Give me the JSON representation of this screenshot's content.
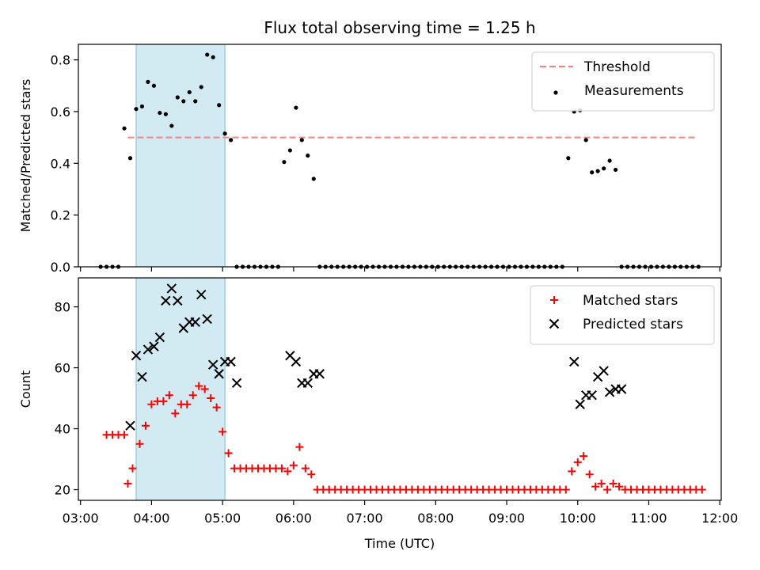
{
  "chart_data": [
    {
      "type": "scatter",
      "title": "Flux total observing time = 1.25 h",
      "xlabel": "",
      "ylabel": "Matched/Predicted stars",
      "ylim": [
        0,
        0.86
      ],
      "yticks": [
        "0.0",
        "0.2",
        "0.4",
        "0.6",
        "0.8"
      ],
      "x_unit": "hours UTC",
      "xlim": [
        2.97,
        12.02
      ],
      "shaded_interval": [
        "03:47",
        "05:02"
      ],
      "shaded_color": "#add8e6",
      "legend_position": "top-right",
      "threshold": {
        "name": "Threshold",
        "value": 0.5,
        "x_range": [
          "03:40",
          "11:40"
        ],
        "color": "#ff7f7f",
        "style": "dashed"
      },
      "series": [
        {
          "name": "Measurements",
          "marker": "dot",
          "color": "#000000",
          "points": [
            [
              "03:17",
              0
            ],
            [
              "03:22",
              0
            ],
            [
              "03:27",
              0
            ],
            [
              "03:32",
              0
            ],
            [
              "03:37",
              0.535
            ],
            [
              "03:42",
              0.42
            ],
            [
              "03:47",
              0.61
            ],
            [
              "03:52",
              0.62
            ],
            [
              "03:57",
              0.715
            ],
            [
              "04:02",
              0.7
            ],
            [
              "04:07",
              0.595
            ],
            [
              "04:12",
              0.59
            ],
            [
              "04:17",
              0.545
            ],
            [
              "04:22",
              0.655
            ],
            [
              "04:27",
              0.64
            ],
            [
              "04:32",
              0.675
            ],
            [
              "04:37",
              0.64
            ],
            [
              "04:42",
              0.695
            ],
            [
              "04:47",
              0.82
            ],
            [
              "04:52",
              0.81
            ],
            [
              "04:57",
              0.625
            ],
            [
              "05:02",
              0.515
            ],
            [
              "05:07",
              0.49
            ],
            [
              "05:12",
              0
            ],
            [
              "05:17",
              0
            ],
            [
              "05:22",
              0
            ],
            [
              "05:27",
              0
            ],
            [
              "05:32",
              0
            ],
            [
              "05:37",
              0
            ],
            [
              "05:42",
              0
            ],
            [
              "05:47",
              0
            ],
            [
              "05:52",
              0.405
            ],
            [
              "05:57",
              0.45
            ],
            [
              "06:02",
              0.615
            ],
            [
              "06:07",
              0.49
            ],
            [
              "06:12",
              0.43
            ],
            [
              "06:17",
              0.34
            ],
            [
              "06:22",
              0
            ],
            [
              "06:27",
              0
            ],
            [
              "06:32",
              0
            ],
            [
              "06:37",
              0
            ],
            [
              "06:42",
              0
            ],
            [
              "06:47",
              0
            ],
            [
              "06:52",
              0
            ],
            [
              "06:57",
              0
            ],
            [
              "07:02",
              0
            ],
            [
              "07:07",
              0
            ],
            [
              "07:12",
              0
            ],
            [
              "07:17",
              0
            ],
            [
              "07:22",
              0
            ],
            [
              "07:27",
              0
            ],
            [
              "07:32",
              0
            ],
            [
              "07:37",
              0
            ],
            [
              "07:42",
              0
            ],
            [
              "07:47",
              0
            ],
            [
              "07:52",
              0
            ],
            [
              "07:57",
              0
            ],
            [
              "08:02",
              0
            ],
            [
              "08:07",
              0
            ],
            [
              "08:12",
              0
            ],
            [
              "08:17",
              0
            ],
            [
              "08:22",
              0
            ],
            [
              "08:27",
              0
            ],
            [
              "08:32",
              0
            ],
            [
              "08:37",
              0
            ],
            [
              "08:42",
              0
            ],
            [
              "08:47",
              0
            ],
            [
              "08:52",
              0
            ],
            [
              "08:57",
              0
            ],
            [
              "09:02",
              0
            ],
            [
              "09:07",
              0
            ],
            [
              "09:12",
              0
            ],
            [
              "09:17",
              0
            ],
            [
              "09:22",
              0
            ],
            [
              "09:27",
              0
            ],
            [
              "09:32",
              0
            ],
            [
              "09:37",
              0
            ],
            [
              "09:42",
              0
            ],
            [
              "09:47",
              0
            ],
            [
              "09:52",
              0.42
            ],
            [
              "09:57",
              0.6
            ],
            [
              "10:02",
              0.605
            ],
            [
              "10:07",
              0.49
            ],
            [
              "10:12",
              0.365
            ],
            [
              "10:17",
              0.37
            ],
            [
              "10:22",
              0.38
            ],
            [
              "10:27",
              0.41
            ],
            [
              "10:32",
              0.375
            ],
            [
              "10:37",
              0
            ],
            [
              "10:42",
              0
            ],
            [
              "10:47",
              0
            ],
            [
              "10:52",
              0
            ],
            [
              "10:57",
              0
            ],
            [
              "11:02",
              0
            ],
            [
              "11:07",
              0
            ],
            [
              "11:12",
              0
            ],
            [
              "11:17",
              0
            ],
            [
              "11:22",
              0
            ],
            [
              "11:27",
              0
            ],
            [
              "11:32",
              0
            ],
            [
              "11:37",
              0
            ],
            [
              "11:42",
              0
            ]
          ]
        }
      ]
    },
    {
      "type": "scatter",
      "title": "",
      "xlabel": "Time (UTC)",
      "ylabel": "Count",
      "ylim": [
        16.5,
        89.5
      ],
      "yticks": [
        20,
        40,
        60,
        80
      ],
      "xlim": [
        2.97,
        12.02
      ],
      "xticks": [
        "03:00",
        "04:00",
        "05:00",
        "06:00",
        "07:00",
        "08:00",
        "09:00",
        "10:00",
        "11:00",
        "12:00"
      ],
      "shaded_interval": [
        "03:47",
        "05:02"
      ],
      "shaded_color": "#add8e6",
      "legend_position": "top-right",
      "series": [
        {
          "name": "Matched stars",
          "marker": "plus",
          "color": "#ff0000",
          "points": [
            [
              "03:22",
              38
            ],
            [
              "03:27",
              38
            ],
            [
              "03:32",
              38
            ],
            [
              "03:37",
              38
            ],
            [
              "03:40",
              22
            ],
            [
              "03:44",
              27
            ],
            [
              "03:50",
              35
            ],
            [
              "03:55",
              41
            ],
            [
              "04:00",
              48
            ],
            [
              "04:05",
              49
            ],
            [
              "04:10",
              49
            ],
            [
              "04:15",
              51
            ],
            [
              "04:20",
              45
            ],
            [
              "04:25",
              48
            ],
            [
              "04:30",
              48
            ],
            [
              "04:35",
              51
            ],
            [
              "04:40",
              54
            ],
            [
              "04:45",
              53
            ],
            [
              "04:50",
              50
            ],
            [
              "04:55",
              47
            ],
            [
              "05:00",
              39
            ],
            [
              "05:05",
              32
            ],
            [
              "05:10",
              27
            ],
            [
              "05:15",
              27
            ],
            [
              "05:20",
              27
            ],
            [
              "05:25",
              27
            ],
            [
              "05:30",
              27
            ],
            [
              "05:35",
              27
            ],
            [
              "05:40",
              27
            ],
            [
              "05:45",
              27
            ],
            [
              "05:50",
              27
            ],
            [
              "05:55",
              26
            ],
            [
              "06:00",
              28
            ],
            [
              "06:05",
              34
            ],
            [
              "06:10",
              27
            ],
            [
              "06:15",
              25
            ],
            [
              "06:20",
              20
            ],
            [
              "06:25",
              20
            ],
            [
              "06:30",
              20
            ],
            [
              "06:35",
              20
            ],
            [
              "06:40",
              20
            ],
            [
              "06:45",
              20
            ],
            [
              "06:50",
              20
            ],
            [
              "06:55",
              20
            ],
            [
              "07:00",
              20
            ],
            [
              "07:05",
              20
            ],
            [
              "07:10",
              20
            ],
            [
              "07:15",
              20
            ],
            [
              "07:20",
              20
            ],
            [
              "07:25",
              20
            ],
            [
              "07:30",
              20
            ],
            [
              "07:35",
              20
            ],
            [
              "07:40",
              20
            ],
            [
              "07:45",
              20
            ],
            [
              "07:50",
              20
            ],
            [
              "07:55",
              20
            ],
            [
              "08:00",
              20
            ],
            [
              "08:05",
              20
            ],
            [
              "08:10",
              20
            ],
            [
              "08:15",
              20
            ],
            [
              "08:20",
              20
            ],
            [
              "08:25",
              20
            ],
            [
              "08:30",
              20
            ],
            [
              "08:35",
              20
            ],
            [
              "08:40",
              20
            ],
            [
              "08:45",
              20
            ],
            [
              "08:50",
              20
            ],
            [
              "08:55",
              20
            ],
            [
              "09:00",
              20
            ],
            [
              "09:05",
              20
            ],
            [
              "09:10",
              20
            ],
            [
              "09:15",
              20
            ],
            [
              "09:20",
              20
            ],
            [
              "09:25",
              20
            ],
            [
              "09:30",
              20
            ],
            [
              "09:35",
              20
            ],
            [
              "09:40",
              20
            ],
            [
              "09:45",
              20
            ],
            [
              "09:50",
              20
            ],
            [
              "09:55",
              26
            ],
            [
              "10:00",
              29
            ],
            [
              "10:05",
              31
            ],
            [
              "10:10",
              25
            ],
            [
              "10:15",
              21
            ],
            [
              "10:20",
              22
            ],
            [
              "10:25",
              20
            ],
            [
              "10:30",
              22
            ],
            [
              "10:35",
              21
            ],
            [
              "10:40",
              20
            ],
            [
              "10:45",
              20
            ],
            [
              "10:50",
              20
            ],
            [
              "10:55",
              20
            ],
            [
              "11:00",
              20
            ],
            [
              "11:05",
              20
            ],
            [
              "11:10",
              20
            ],
            [
              "11:15",
              20
            ],
            [
              "11:20",
              20
            ],
            [
              "11:25",
              20
            ],
            [
              "11:30",
              20
            ],
            [
              "11:35",
              20
            ],
            [
              "11:40",
              20
            ],
            [
              "11:45",
              20
            ]
          ]
        },
        {
          "name": "Predicted stars",
          "marker": "x",
          "color": "#000000",
          "points": [
            [
              "03:42",
              41
            ],
            [
              "03:47",
              64
            ],
            [
              "03:52",
              57
            ],
            [
              "03:57",
              66
            ],
            [
              "04:02",
              67
            ],
            [
              "04:07",
              70
            ],
            [
              "04:12",
              82
            ],
            [
              "04:17",
              86
            ],
            [
              "04:22",
              82
            ],
            [
              "04:27",
              73
            ],
            [
              "04:32",
              75
            ],
            [
              "04:37",
              75
            ],
            [
              "04:42",
              84
            ],
            [
              "04:47",
              76
            ],
            [
              "04:52",
              61
            ],
            [
              "04:57",
              58
            ],
            [
              "05:02",
              62
            ],
            [
              "05:07",
              62
            ],
            [
              "05:12",
              55
            ],
            [
              "05:57",
              64
            ],
            [
              "06:02",
              62
            ],
            [
              "06:07",
              55
            ],
            [
              "06:12",
              55
            ],
            [
              "06:17",
              58
            ],
            [
              "06:22",
              58
            ],
            [
              "09:57",
              62
            ],
            [
              "10:02",
              48
            ],
            [
              "10:07",
              51
            ],
            [
              "10:12",
              51
            ],
            [
              "10:17",
              57
            ],
            [
              "10:22",
              59
            ],
            [
              "10:27",
              52
            ],
            [
              "10:32",
              53
            ],
            [
              "10:37",
              53
            ]
          ]
        }
      ]
    }
  ]
}
